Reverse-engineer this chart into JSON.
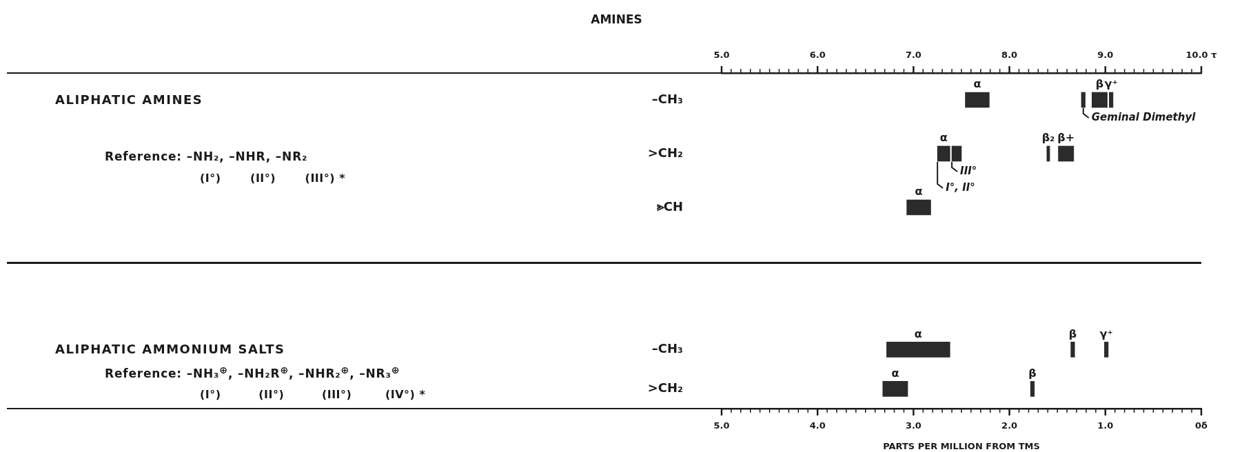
{
  "chart_data": [
    {
      "type": "bar",
      "title": "AMINES",
      "orientation": "horizontal",
      "categories": [
        "–CH₃",
        ">CH₂",
        "⪢CH"
      ],
      "series": [
        {
          "color": "#2b2b2b",
          "base": [
            7.54,
            7.25,
            6.93
          ],
          "values": [
            0.25,
            0.13,
            0.25
          ],
          "value_labels": [
            "α",
            "α",
            "α"
          ]
        },
        {
          "color": "#2b2b2b",
          "base": [
            8.75,
            7.4,
            null
          ],
          "values": [
            0.04,
            0.1,
            null
          ],
          "value_labels": [
            null,
            null,
            null
          ]
        },
        {
          "color": "#2b2b2b",
          "base": [
            8.86,
            8.39,
            null
          ],
          "values": [
            0.16,
            0.03,
            null
          ],
          "value_labels": [
            "β",
            "β₂",
            null
          ]
        },
        {
          "color": "#2b2b2b",
          "base": [
            9.04,
            8.51,
            null
          ],
          "values": [
            0.04,
            0.16,
            null
          ],
          "value_labels": [
            "γ⁺",
            "β+",
            null
          ]
        }
      ],
      "xlim": [
        5,
        10
      ],
      "xticks": [
        {
          "value": 5,
          "label": "5.0"
        },
        {
          "value": 5.1,
          "label": null
        },
        {
          "value": 5.2,
          "label": null
        },
        {
          "value": 5.3,
          "label": null
        },
        {
          "value": 5.4,
          "label": null
        },
        {
          "value": 5.5,
          "label": null
        },
        {
          "value": 5.6,
          "label": null
        },
        {
          "value": 5.7,
          "label": null
        },
        {
          "value": 5.8,
          "label": null
        },
        {
          "value": 5.9,
          "label": null
        },
        {
          "value": 6,
          "label": "6.0"
        },
        {
          "value": 6.1,
          "label": null
        },
        {
          "value": 6.2,
          "label": null
        },
        {
          "value": 6.3,
          "label": null
        },
        {
          "value": 6.4,
          "label": null
        },
        {
          "value": 6.5,
          "label": null
        },
        {
          "value": 6.6,
          "label": null
        },
        {
          "value": 6.7,
          "label": null
        },
        {
          "value": 6.8,
          "label": null
        },
        {
          "value": 6.9,
          "label": null
        },
        {
          "value": 7,
          "label": "7.0"
        },
        {
          "value": 7.1,
          "label": null
        },
        {
          "value": 7.2,
          "label": null
        },
        {
          "value": 7.3,
          "label": null
        },
        {
          "value": 7.4,
          "label": null
        },
        {
          "value": 7.5,
          "label": null
        },
        {
          "value": 7.6,
          "label": null
        },
        {
          "value": 7.7,
          "label": null
        },
        {
          "value": 7.8,
          "label": null
        },
        {
          "value": 7.9,
          "label": null
        },
        {
          "value": 8,
          "label": "8.0"
        },
        {
          "value": 8.1,
          "label": null
        },
        {
          "value": 8.2,
          "label": null
        },
        {
          "value": 8.3,
          "label": null
        },
        {
          "value": 8.4,
          "label": null
        },
        {
          "value": 8.5,
          "label": null
        },
        {
          "value": 8.6,
          "label": null
        },
        {
          "value": 8.7,
          "label": null
        },
        {
          "value": 8.8,
          "label": null
        },
        {
          "value": 8.9,
          "label": null
        },
        {
          "value": 9,
          "label": "9.0"
        },
        {
          "value": 9.1,
          "label": null
        },
        {
          "value": 9.2,
          "label": null
        },
        {
          "value": 9.3,
          "label": null
        },
        {
          "value": 9.4,
          "label": null
        },
        {
          "value": 9.5,
          "label": null
        },
        {
          "value": 9.6,
          "label": null
        },
        {
          "value": 9.7,
          "label": null
        },
        {
          "value": 9.8,
          "label": null
        },
        {
          "value": 9.9,
          "label": null
        },
        {
          "value": 10,
          "label": "10.0 τ"
        }
      ],
      "annotations": [
        "ALIPHATIC AMINES",
        "Reference: –NH₂, –NHR, –NR₂",
        "(I°)       (II°)       (III°) *",
        {
          "text": "Geminal Dimethyl",
          "x": 8.77,
          "y": "–CH₃"
        },
        {
          "text": "III°",
          "x": 7.4,
          "y": ">CH₂"
        },
        {
          "text": "I°, II°",
          "x": 7.25,
          "y": ">CH₂"
        }
      ]
    },
    {
      "type": "bar",
      "orientation": "horizontal",
      "xlabel": "PARTS PER MILLION FROM TMS",
      "categories": [
        "–CH₃",
        ">CH₂"
      ],
      "series": [
        {
          "color": "#2b2b2b",
          "base": [
            2.62,
            3.06
          ],
          "values": [
            0.66,
            0.26
          ],
          "value_labels": [
            "α",
            "α"
          ]
        },
        {
          "color": "#2b2b2b",
          "base": [
            1.32,
            1.74
          ],
          "values": [
            0.04,
            0.04
          ],
          "value_labels": [
            "β",
            "β"
          ]
        },
        {
          "color": "#2b2b2b",
          "base": [
            0.97,
            null
          ],
          "values": [
            0.04,
            null
          ],
          "value_labels": [
            "γ⁺",
            null
          ]
        }
      ],
      "xlim": [
        5,
        0
      ],
      "xticks": [
        {
          "value": 5,
          "label": "5.0"
        },
        {
          "value": 4.9,
          "label": null
        },
        {
          "value": 4.8,
          "label": null
        },
        {
          "value": 4.7,
          "label": null
        },
        {
          "value": 4.6,
          "label": null
        },
        {
          "value": 4.5,
          "label": null
        },
        {
          "value": 4.4,
          "label": null
        },
        {
          "value": 4.3,
          "label": null
        },
        {
          "value": 4.2,
          "label": null
        },
        {
          "value": 4.1,
          "label": null
        },
        {
          "value": 4,
          "label": "4.0"
        },
        {
          "value": 3.9,
          "label": null
        },
        {
          "value": 3.8,
          "label": null
        },
        {
          "value": 3.7,
          "label": null
        },
        {
          "value": 3.6,
          "label": null
        },
        {
          "value": 3.5,
          "label": null
        },
        {
          "value": 3.4,
          "label": null
        },
        {
          "value": 3.3,
          "label": null
        },
        {
          "value": 3.2,
          "label": null
        },
        {
          "value": 3.1,
          "label": null
        },
        {
          "value": 3,
          "label": "3.0"
        },
        {
          "value": 2.9,
          "label": null
        },
        {
          "value": 2.8,
          "label": null
        },
        {
          "value": 2.7,
          "label": null
        },
        {
          "value": 2.6,
          "label": null
        },
        {
          "value": 2.5,
          "label": null
        },
        {
          "value": 2.4,
          "label": null
        },
        {
          "value": 2.3,
          "label": null
        },
        {
          "value": 2.2,
          "label": null
        },
        {
          "value": 2.1,
          "label": null
        },
        {
          "value": 2,
          "label": "2.0"
        },
        {
          "value": 1.9,
          "label": null
        },
        {
          "value": 1.8,
          "label": null
        },
        {
          "value": 1.7,
          "label": null
        },
        {
          "value": 1.6,
          "label": null
        },
        {
          "value": 1.5,
          "label": null
        },
        {
          "value": 1.4,
          "label": null
        },
        {
          "value": 1.3,
          "label": null
        },
        {
          "value": 1.2,
          "label": null
        },
        {
          "value": 1.1,
          "label": null
        },
        {
          "value": 1,
          "label": "1.0"
        },
        {
          "value": 0.9,
          "label": null
        },
        {
          "value": 0.8,
          "label": null
        },
        {
          "value": 0.7,
          "label": null
        },
        {
          "value": 0.6,
          "label": null
        },
        {
          "value": 0.5,
          "label": null
        },
        {
          "value": 0.4,
          "label": null
        },
        {
          "value": 0.3,
          "label": null
        },
        {
          "value": 0.2,
          "label": null
        },
        {
          "value": 0.1,
          "label": null
        },
        {
          "value": 0,
          "label": "0δ"
        }
      ],
      "annotations": [
        "ALIPHATIC AMMONIUM SALTS",
        "Reference: –NH₃$^{⊕}$, –NH₂R$^{⊕}$, –NHR₂$^{⊕}$, –NR₃$^{⊕}$",
        "(I°)         (II°)         (III°)        (IV°) *"
      ]
    }
  ]
}
